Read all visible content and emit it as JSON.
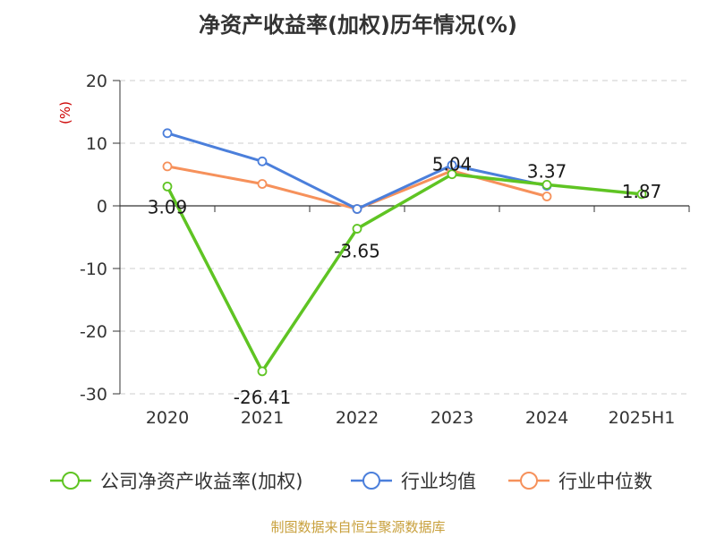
{
  "chart_data": {
    "type": "line",
    "title": "净资产收益率(加权)历年情况(%)",
    "unit_label": "(%)",
    "categories": [
      "2020",
      "2021",
      "2022",
      "2023",
      "2024",
      "2025H1"
    ],
    "ylim": [
      -30,
      20
    ],
    "yticks": [
      20,
      10,
      0,
      -10,
      -20,
      -30
    ],
    "grid": true,
    "legend_position": "bottom",
    "series": [
      {
        "name": "公司净资产收益率(加权)",
        "color": "#5fc423",
        "values": [
          3.09,
          -26.41,
          -3.65,
          5.04,
          3.37,
          1.87
        ],
        "labels": [
          "3.09",
          "-26.41",
          "-3.65",
          "5.04",
          "3.37",
          "1.87"
        ]
      },
      {
        "name": "行业均值",
        "color": "#4b7fdb",
        "values": [
          11.6,
          7.1,
          -0.5,
          6.5,
          3.2,
          null
        ]
      },
      {
        "name": "行业中位数",
        "color": "#f6915b",
        "values": [
          6.3,
          3.5,
          -0.5,
          5.6,
          1.5,
          null
        ]
      }
    ],
    "source": "制图数据来自恒生聚源数据库"
  },
  "colors": {
    "unit": "#cc0000",
    "source": "#c8a03c",
    "axis": "#333333",
    "grid": "#cccccc"
  }
}
